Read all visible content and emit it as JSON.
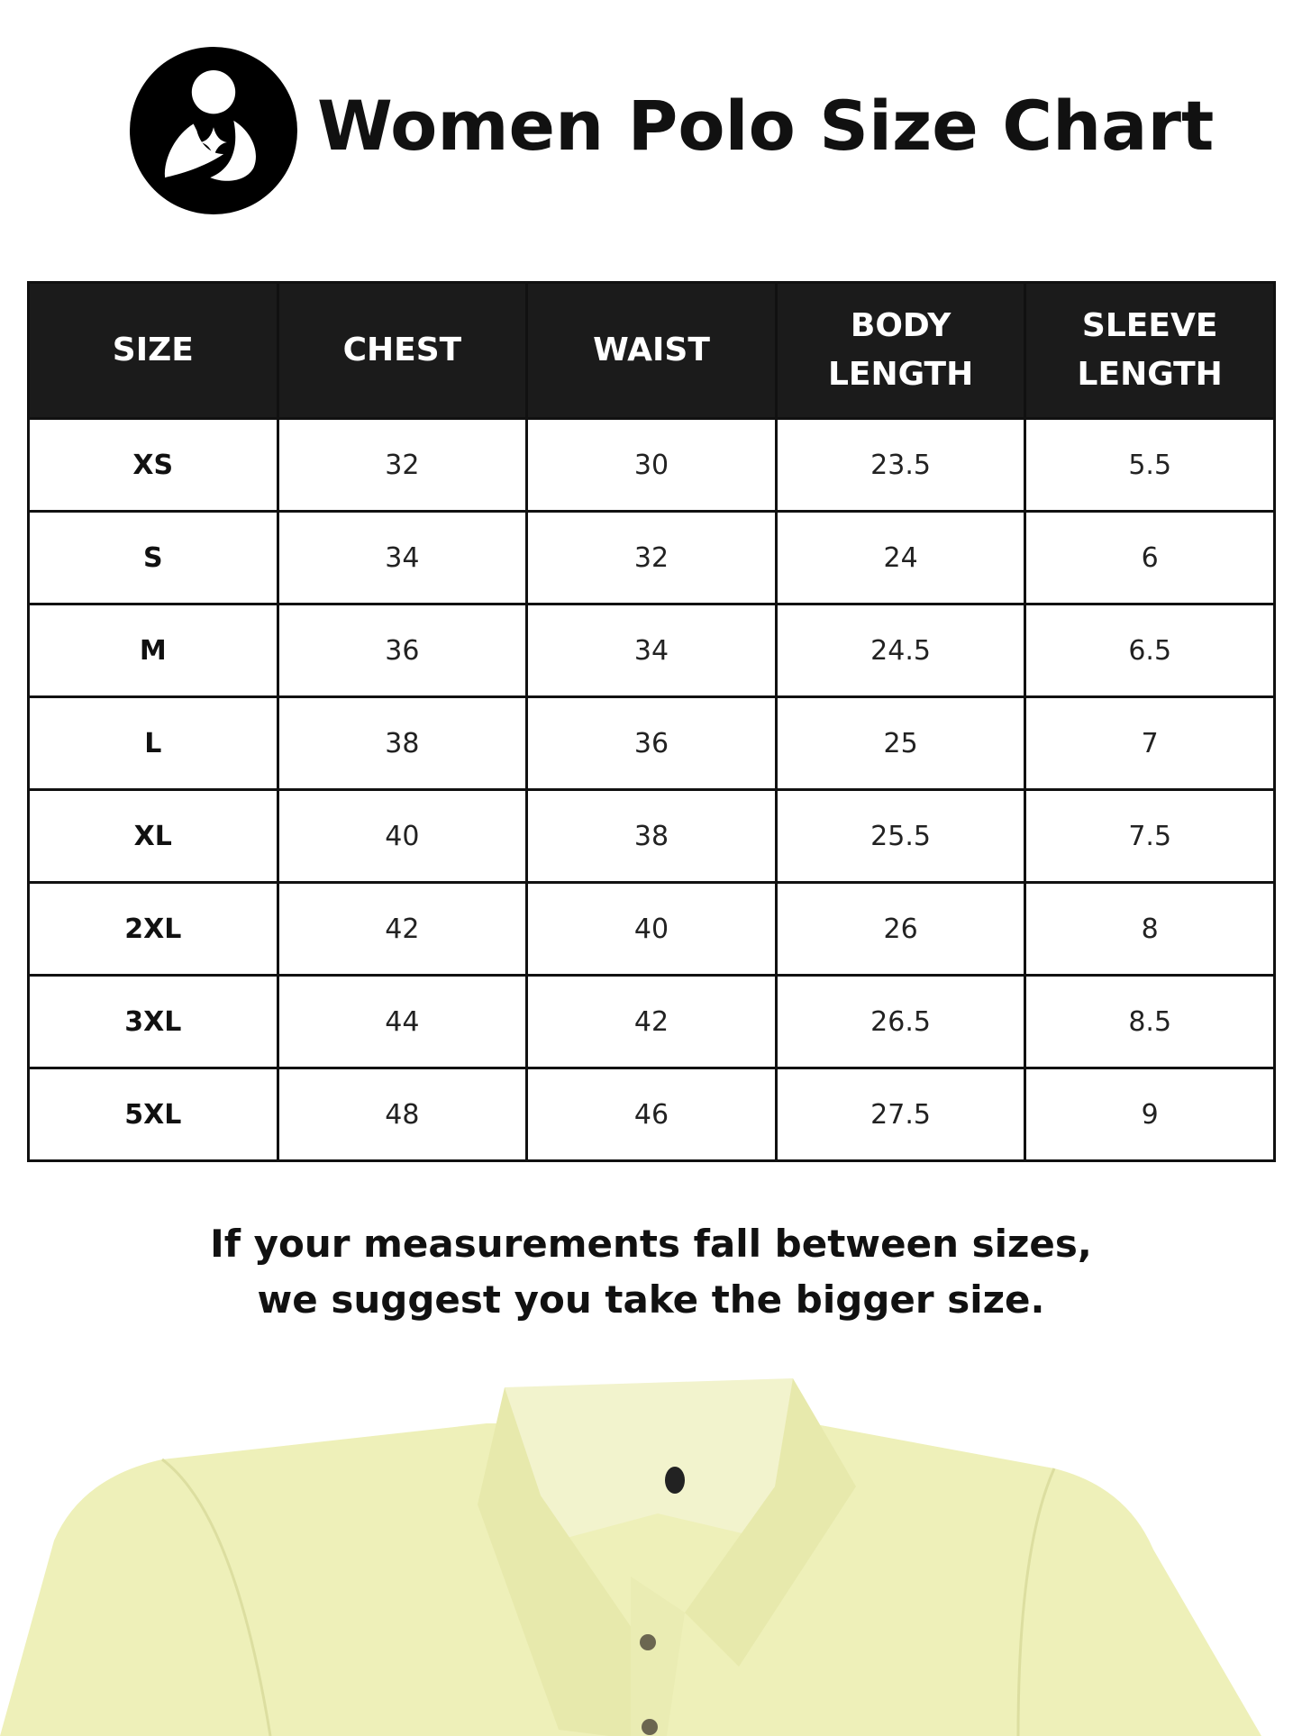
{
  "header": {
    "title": "Women Polo Size Chart",
    "logo": "mother-and-child-logo"
  },
  "table": {
    "columns": [
      "SIZE",
      "CHEST",
      "WAIST",
      "BODY LENGTH",
      "SLEEVE LENGTH"
    ],
    "rows": [
      [
        "XS",
        "32",
        "30",
        "23.5",
        "5.5"
      ],
      [
        "S",
        "34",
        "32",
        "24",
        "6"
      ],
      [
        "M",
        "36",
        "34",
        "24.5",
        "6.5"
      ],
      [
        "L",
        "38",
        "36",
        "25",
        "7"
      ],
      [
        "XL",
        "40",
        "38",
        "25.5",
        "7.5"
      ],
      [
        "2XL",
        "42",
        "40",
        "26",
        "8"
      ],
      [
        "3XL",
        "44",
        "42",
        "26.5",
        "8.5"
      ],
      [
        "5XL",
        "48",
        "46",
        "27.5",
        "9"
      ]
    ]
  },
  "note": {
    "line1": "If your measurements fall between sizes,",
    "line2": "we suggest you take the bigger size."
  },
  "colors": {
    "header_bg": "#1b1b1b",
    "shirt": "#eef0b9"
  }
}
